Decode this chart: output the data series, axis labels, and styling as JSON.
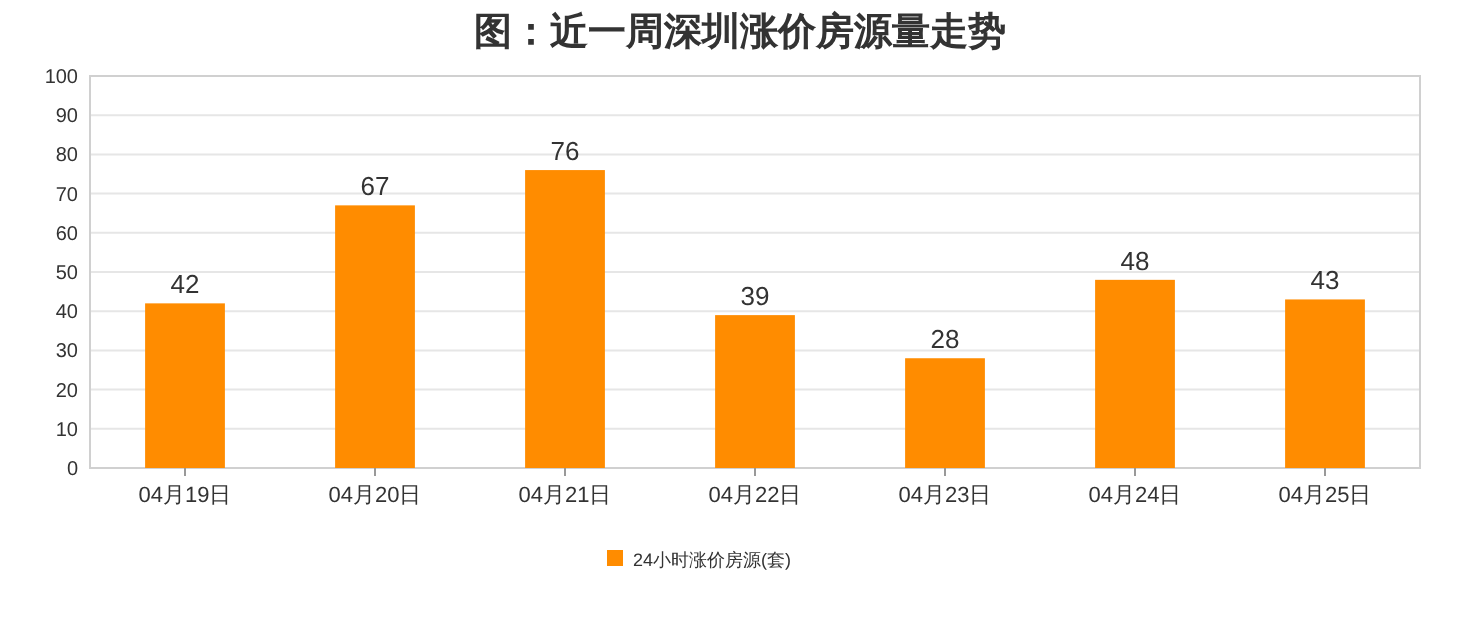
{
  "chart_data": {
    "type": "bar",
    "title": "图：近一周深圳涨价房源量走势",
    "categories": [
      "04月19日",
      "04月20日",
      "04月21日",
      "04月22日",
      "04月23日",
      "04月24日",
      "04月25日"
    ],
    "series": [
      {
        "name": "24小时涨价房源(套)",
        "color": "#ff8c00",
        "values": [
          42,
          67,
          76,
          39,
          28,
          48,
          43
        ]
      }
    ],
    "ylim": [
      0,
      100
    ],
    "yticks": [
      0,
      10,
      20,
      30,
      40,
      50,
      60,
      70,
      80,
      90,
      100
    ],
    "grid": "y",
    "legend": "bottom",
    "data_labels": true
  }
}
